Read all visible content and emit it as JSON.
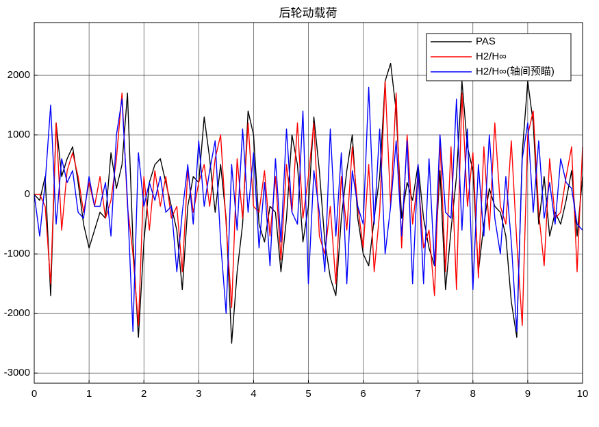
{
  "chart_data": {
    "type": "line",
    "title": "后轮动载荷",
    "x": [
      0,
      0.1,
      0.2,
      0.3,
      0.4,
      0.5,
      0.6,
      0.7,
      0.8,
      0.9,
      1,
      1.1,
      1.2,
      1.3,
      1.4,
      1.5,
      1.6,
      1.7,
      1.8,
      1.9,
      2,
      2.1,
      2.2,
      2.3,
      2.4,
      2.5,
      2.6,
      2.7,
      2.8,
      2.9,
      3,
      3.1,
      3.2,
      3.3,
      3.4,
      3.5,
      3.6,
      3.7,
      3.8,
      3.9,
      4,
      4.1,
      4.2,
      4.3,
      4.4,
      4.5,
      4.6,
      4.7,
      4.8,
      4.9,
      5,
      5.1,
      5.2,
      5.3,
      5.4,
      5.5,
      5.6,
      5.7,
      5.8,
      5.9,
      6,
      6.1,
      6.2,
      6.3,
      6.4,
      6.5,
      6.6,
      6.7,
      6.8,
      6.9,
      7,
      7.1,
      7.2,
      7.3,
      7.4,
      7.5,
      7.6,
      7.7,
      7.8,
      7.9,
      8,
      8.1,
      8.2,
      8.3,
      8.4,
      8.5,
      8.6,
      8.7,
      8.8,
      8.9,
      9,
      9.1,
      9.2,
      9.3,
      9.4,
      9.5,
      9.6,
      9.7,
      9.8,
      9.9,
      10
    ],
    "series": [
      {
        "name": "PAS",
        "color": "#000000",
        "values": [
          0,
          -100,
          300,
          -1700,
          1200,
          300,
          600,
          800,
          200,
          -500,
          -900,
          -600,
          -300,
          -400,
          700,
          100,
          500,
          1700,
          -800,
          -2400,
          -800,
          200,
          500,
          600,
          200,
          -200,
          -600,
          -1600,
          -200,
          300,
          200,
          1300,
          600,
          -300,
          500,
          -400,
          -2500,
          -1300,
          -500,
          1400,
          1000,
          -500,
          -800,
          -200,
          -300,
          -1300,
          -400,
          1000,
          500,
          -800,
          -200,
          1300,
          400,
          -800,
          -1400,
          -1700,
          -400,
          400,
          1000,
          -400,
          -1000,
          -1200,
          -400,
          300,
          1900,
          2200,
          1400,
          -400,
          200,
          -100,
          500,
          -400,
          -900,
          -1200,
          400,
          -1600,
          -600,
          300,
          1900,
          800,
          400,
          -1300,
          -500,
          100,
          -200,
          -300,
          -700,
          -1800,
          -2400,
          700,
          1900,
          1200,
          -500,
          300,
          -700,
          -300,
          -500,
          -100,
          400,
          -700,
          300
        ]
      },
      {
        "name": "H2/H∞",
        "color": "#ff0000",
        "values": [
          0,
          0,
          -200,
          -1500,
          1200,
          -600,
          400,
          700,
          300,
          -300,
          200,
          -200,
          300,
          -400,
          -100,
          600,
          1700,
          -200,
          -1000,
          -2200,
          300,
          -600,
          400,
          -200,
          300,
          -400,
          -200,
          -1300,
          400,
          -300,
          200,
          500,
          -200,
          600,
          1000,
          -500,
          -1900,
          600,
          -400,
          1200,
          -200,
          -300,
          400,
          -700,
          300,
          -1100,
          500,
          -300,
          1200,
          -400,
          300,
          1200,
          -700,
          -1000,
          -200,
          -1500,
          300,
          -600,
          800,
          -200,
          -900,
          500,
          -1300,
          -300,
          1900,
          -200,
          1700,
          -900,
          1000,
          -500,
          300,
          -900,
          -600,
          -1700,
          900,
          -1300,
          800,
          -1600,
          1700,
          -200,
          700,
          -1400,
          800,
          -600,
          1200,
          -200,
          -500,
          900,
          -800,
          -2200,
          1000,
          1400,
          -300,
          -1200,
          600,
          -400,
          -300,
          300,
          800,
          -1300,
          800
        ]
      },
      {
        "name": "H2/H∞(轴间预瞄)",
        "color": "#0000ff",
        "values": [
          0,
          -700,
          200,
          1500,
          -500,
          600,
          200,
          400,
          -300,
          -400,
          300,
          -200,
          -200,
          200,
          -700,
          1000,
          1600,
          -100,
          -2300,
          700,
          -200,
          200,
          -100,
          300,
          -300,
          -200,
          -1300,
          -300,
          500,
          -500,
          900,
          -200,
          400,
          900,
          -800,
          -2000,
          500,
          -600,
          1100,
          -300,
          700,
          -900,
          200,
          -1200,
          600,
          -800,
          1100,
          -300,
          -500,
          1400,
          -1500,
          400,
          -300,
          -1300,
          1100,
          -700,
          700,
          -1500,
          400,
          -200,
          -500,
          1800,
          -500,
          1100,
          -1000,
          -200,
          900,
          -700,
          900,
          -1500,
          500,
          -1500,
          600,
          -1200,
          1000,
          -300,
          -400,
          1600,
          -600,
          1100,
          -1600,
          500,
          -700,
          1000,
          -400,
          -1000,
          300,
          -800,
          -2300,
          600,
          1200,
          -300,
          900,
          -400,
          200,
          -500,
          600,
          200,
          100,
          -500,
          -600
        ]
      }
    ],
    "xlim": [
      0,
      10
    ],
    "xticks": [
      0,
      1,
      2,
      3,
      4,
      5,
      6,
      7,
      8,
      9,
      10
    ],
    "ylim": [
      -3170,
      2885
    ],
    "yticks": [
      -3000,
      -2000,
      -1000,
      0,
      1000,
      2000
    ],
    "grid": true,
    "legend": "upper right"
  }
}
